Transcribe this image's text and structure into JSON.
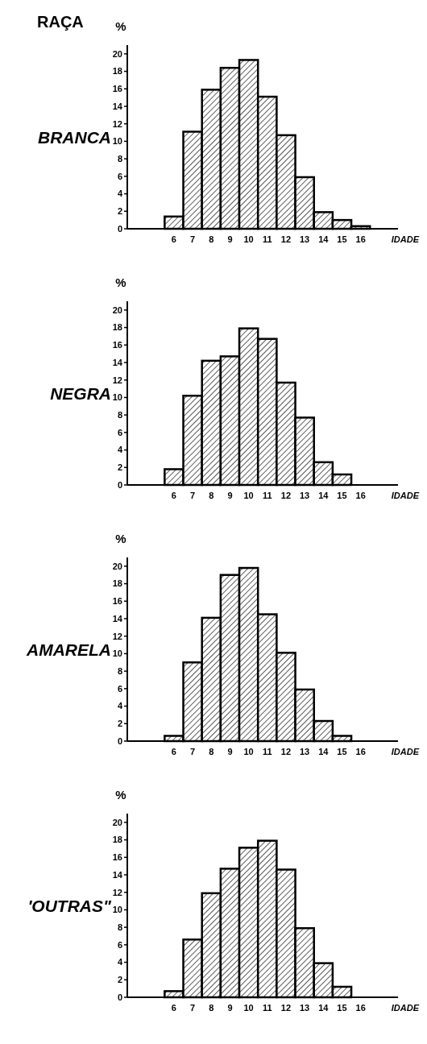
{
  "chart_data": [
    {
      "type": "histogram",
      "title": "BRANCA",
      "annotations": [
        "RAÇA"
      ],
      "xlabel": "IDADE",
      "ylabel": "%",
      "color": "#000000",
      "bins": [
        5.5,
        6.5,
        7.5,
        8.5,
        9.5,
        10.5,
        11.5,
        12.5,
        13.5,
        14.5,
        15.5,
        16.5
      ],
      "values": [
        1.4,
        11.1,
        15.9,
        18.4,
        19.3,
        15.1,
        10.7,
        5.9,
        1.9,
        1.0,
        0.3
      ],
      "xlim": [
        3.5,
        18
      ],
      "xticks": [
        6,
        7,
        8,
        9,
        10,
        11,
        12,
        13,
        14,
        15,
        16
      ],
      "ylim": [
        0,
        21
      ],
      "yticks": [
        0,
        2,
        4,
        6,
        8,
        10,
        12,
        14,
        16,
        18,
        20
      ]
    },
    {
      "type": "histogram",
      "title": "NEGRA",
      "xlabel": "IDADE",
      "ylabel": "%",
      "color": "#000000",
      "bins": [
        5.5,
        6.5,
        7.5,
        8.5,
        9.5,
        10.5,
        11.5,
        12.5,
        13.5,
        14.5,
        15.5,
        16.5
      ],
      "values": [
        1.8,
        10.2,
        14.2,
        14.7,
        17.9,
        16.7,
        11.7,
        7.7,
        2.6,
        1.2,
        0
      ],
      "xlim": [
        3.5,
        18
      ],
      "xticks": [
        6,
        7,
        8,
        9,
        10,
        11,
        12,
        13,
        14,
        15,
        16
      ],
      "ylim": [
        0,
        21
      ],
      "yticks": [
        0,
        2,
        4,
        6,
        8,
        10,
        12,
        14,
        16,
        18,
        20
      ]
    },
    {
      "type": "histogram",
      "title": "AMARELA",
      "xlabel": "IDADE",
      "ylabel": "%",
      "color": "#000000",
      "bins": [
        5.5,
        6.5,
        7.5,
        8.5,
        9.5,
        10.5,
        11.5,
        12.5,
        13.5,
        14.5,
        15.5,
        16.5
      ],
      "values": [
        0.6,
        9.0,
        14.1,
        19.0,
        19.8,
        14.5,
        10.1,
        5.9,
        2.3,
        0.6,
        0
      ],
      "xlim": [
        3.5,
        18
      ],
      "xticks": [
        6,
        7,
        8,
        9,
        10,
        11,
        12,
        13,
        14,
        15,
        16
      ],
      "ylim": [
        0,
        21
      ],
      "yticks": [
        0,
        2,
        4,
        6,
        8,
        10,
        12,
        14,
        16,
        18,
        20
      ]
    },
    {
      "type": "histogram",
      "title": "'OUTRAS\"",
      "xlabel": "IDADE",
      "ylabel": "%",
      "color": "#000000",
      "bins": [
        5.5,
        6.5,
        7.5,
        8.5,
        9.5,
        10.5,
        11.5,
        12.5,
        13.5,
        14.5,
        15.5,
        16.5
      ],
      "values": [
        0.7,
        6.6,
        11.9,
        14.7,
        17.1,
        17.9,
        14.6,
        7.9,
        3.9,
        1.2,
        0
      ],
      "xlim": [
        3.5,
        18
      ],
      "xticks": [
        6,
        7,
        8,
        9,
        10,
        11,
        12,
        13,
        14,
        15,
        16
      ],
      "ylim": [
        0,
        21
      ],
      "yticks": [
        0,
        2,
        4,
        6,
        8,
        10,
        12,
        14,
        16,
        18,
        20
      ]
    }
  ]
}
